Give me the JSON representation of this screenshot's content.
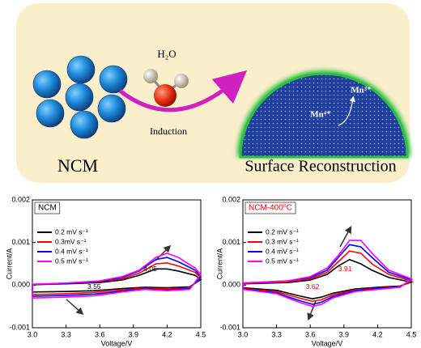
{
  "diagram": {
    "water_label": "H₂O",
    "arrow_label": "Induction",
    "left_label": "NCM",
    "right_label": "Surface Reconstruction",
    "ion_a": "Mn³⁺",
    "ion_b": "Mn⁴⁺"
  },
  "chart_data": [
    {
      "type": "line",
      "title": "NCM",
      "title_color": "#000000",
      "xlabel": "Voltage/V",
      "ylabel": "Current/A",
      "xlim": [
        3.0,
        4.5
      ],
      "ylim": [
        -0.001,
        0.002
      ],
      "xticks": [
        {
          "value": 3.0,
          "label": "3.0"
        },
        3.3,
        3.6,
        3.9,
        4.2,
        {
          "value": 4.5,
          "label": "4.5"
        }
      ],
      "yticks": [
        -0.001,
        {
          "value": 0,
          "label": "0.000"
        },
        0.001,
        0.002
      ],
      "peak_potentials": [
        4.05,
        3.55
      ],
      "peak_color": "#000000",
      "series": [
        {
          "name": "0.2 mV s⁻¹",
          "color": "#000000",
          "x": [
            3.0,
            3.3,
            3.6,
            3.8,
            3.95,
            4.1,
            4.2,
            4.3,
            4.45,
            4.5,
            4.4,
            4.2,
            4.0,
            3.8,
            3.55,
            3.3,
            3.0,
            3.0
          ],
          "values": [
            1e-05,
            3e-05,
            6e-05,
            0.00012,
            0.00023,
            0.00038,
            0.00038,
            0.00033,
            0.00023,
            0.00013,
            -4e-05,
            -6e-05,
            -5e-05,
            -8e-05,
            -0.00013,
            -0.00015,
            -0.00016,
            1e-05
          ]
        },
        {
          "name": "0.3mV s⁻¹",
          "color": "#ff0000",
          "x": [
            3.0,
            3.3,
            3.6,
            3.8,
            3.95,
            4.1,
            4.2,
            4.3,
            4.45,
            4.5,
            4.4,
            4.2,
            4.0,
            3.8,
            3.55,
            3.3,
            3.0,
            3.0
          ],
          "values": [
            2e-05,
            4e-05,
            8e-05,
            0.00015,
            0.00028,
            0.0005,
            0.00052,
            0.00045,
            0.0003,
            0.00017,
            -6e-05,
            -9e-05,
            -7e-05,
            -0.00011,
            -0.00017,
            -0.0002,
            -0.00022,
            2e-05
          ]
        },
        {
          "name": "0.4 mV s⁻¹",
          "color": "#0000ff",
          "x": [
            3.0,
            3.3,
            3.6,
            3.8,
            3.95,
            4.1,
            4.2,
            4.3,
            4.45,
            4.5,
            4.4,
            4.2,
            4.0,
            3.8,
            3.55,
            3.3,
            3.0,
            3.0
          ],
          "values": [
            2e-05,
            4e-05,
            9e-05,
            0.00018,
            0.00033,
            0.0006,
            0.00065,
            0.00055,
            0.00035,
            0.0002,
            -8e-05,
            -0.00011,
            -9e-05,
            -0.00014,
            -0.00021,
            -0.00024,
            -0.00026,
            2e-05
          ]
        },
        {
          "name": "0.5 mV s⁻¹",
          "color": "#ff00ff",
          "x": [
            3.0,
            3.3,
            3.6,
            3.8,
            3.95,
            4.1,
            4.2,
            4.3,
            4.45,
            4.5,
            4.4,
            4.2,
            4.0,
            3.8,
            3.55,
            3.3,
            3.0,
            3.0
          ],
          "values": [
            2e-05,
            5e-05,
            0.0001,
            0.0002,
            0.00035,
            0.00065,
            0.00075,
            0.00065,
            0.0004,
            0.00025,
            -0.0001,
            -0.00013,
            -0.0001,
            -0.00016,
            -0.00025,
            -0.00028,
            -0.0003,
            2e-05
          ]
        }
      ]
    },
    {
      "type": "line",
      "title": "NCM-400⁰C",
      "title_color": "#ff0000",
      "xlabel": "Voltage/V",
      "ylabel": "Current/A",
      "xlim": [
        3.0,
        4.5
      ],
      "ylim": [
        -0.001,
        0.002
      ],
      "xticks": [
        {
          "value": 3.0,
          "label": "3.0"
        },
        3.3,
        3.6,
        3.9,
        4.2,
        {
          "value": 4.5,
          "label": "4.5"
        }
      ],
      "yticks": [
        -0.001,
        {
          "value": 0,
          "label": "0.000"
        },
        0.001,
        0.002
      ],
      "peak_potentials": [
        3.91,
        3.62
      ],
      "peak_color": "#ff0000",
      "series": [
        {
          "name": "0.2 mV s⁻¹",
          "color": "#000000",
          "x": [
            3.0,
            3.4,
            3.6,
            3.75,
            3.85,
            3.95,
            4.05,
            4.15,
            4.3,
            4.5,
            4.4,
            4.2,
            4.0,
            3.8,
            3.7,
            3.62,
            3.5,
            3.3,
            3.0,
            3.0
          ],
          "values": [
            3e-05,
            6e-05,
            0.00012,
            0.00025,
            0.00045,
            0.0006,
            0.0005,
            0.00035,
            0.00018,
            7e-05,
            -2e-05,
            -5e-05,
            -9e-05,
            -0.00019,
            -0.00028,
            -0.00032,
            -0.00025,
            -0.00012,
            -6e-05,
            3e-05
          ]
        },
        {
          "name": "0.3 mV s⁻¹",
          "color": "#ff0000",
          "x": [
            3.0,
            3.4,
            3.6,
            3.75,
            3.85,
            3.95,
            4.05,
            4.15,
            4.3,
            4.5,
            4.4,
            4.2,
            4.0,
            3.8,
            3.7,
            3.62,
            3.5,
            3.3,
            3.0,
            3.0
          ],
          "values": [
            4e-05,
            8e-05,
            0.00015,
            0.0003,
            0.00055,
            0.0008,
            0.00075,
            0.0005,
            0.00025,
            0.0001,
            -3e-05,
            -7e-05,
            -0.00011,
            -0.00023,
            -0.00034,
            -0.00038,
            -0.0003,
            -0.00015,
            -8e-05,
            4e-05
          ]
        },
        {
          "name": "0.4 mV s⁻¹",
          "color": "#0000ff",
          "x": [
            3.0,
            3.4,
            3.6,
            3.75,
            3.85,
            3.95,
            4.05,
            4.15,
            4.3,
            4.5,
            4.4,
            4.2,
            4.0,
            3.8,
            3.7,
            3.62,
            3.5,
            3.3,
            3.0,
            3.0
          ],
          "values": [
            5e-05,
            0.0001,
            0.00018,
            0.00035,
            0.00065,
            0.00095,
            0.0009,
            0.00065,
            0.0003,
            0.00013,
            -4e-05,
            -8e-05,
            -0.00013,
            -0.00027,
            -0.0004,
            -0.00045,
            -0.00036,
            -0.00018,
            -9e-05,
            5e-05
          ]
        },
        {
          "name": "0.5 mV s⁻¹",
          "color": "#ff00ff",
          "x": [
            3.0,
            3.4,
            3.6,
            3.75,
            3.85,
            3.95,
            4.05,
            4.15,
            4.3,
            4.5,
            4.4,
            4.2,
            4.0,
            3.8,
            3.7,
            3.62,
            3.5,
            3.3,
            3.0,
            3.0
          ],
          "values": [
            5e-05,
            0.0001,
            0.0002,
            0.0004,
            0.0007,
            0.00105,
            0.00105,
            0.00075,
            0.00035,
            0.00015,
            -5e-05,
            -0.0001,
            -0.00015,
            -0.0003,
            -0.00045,
            -0.0005,
            -0.0004,
            -0.0002,
            -0.0001,
            5e-05
          ]
        }
      ]
    }
  ]
}
